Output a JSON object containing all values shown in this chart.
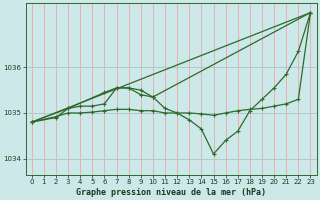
{
  "bg_color": "#cce8e8",
  "plot_bg_color": "#cce8e8",
  "grid_color_h": "#aacccc",
  "grid_color_v": "#e8b0b0",
  "line_color": "#2d6a2d",
  "marker_color": "#2d6a2d",
  "xlabel": "Graphe pression niveau de la mer (hPa)",
  "ylim": [
    1033.65,
    1037.4
  ],
  "xlim": [
    -0.5,
    23.5
  ],
  "yticks": [
    1034,
    1035,
    1036
  ],
  "xticks": [
    0,
    1,
    2,
    3,
    4,
    5,
    6,
    7,
    8,
    9,
    10,
    11,
    12,
    13,
    14,
    15,
    16,
    17,
    18,
    19,
    20,
    21,
    22,
    23
  ],
  "series": [
    {
      "x": [
        0,
        23
      ],
      "y": [
        1034.8,
        1037.2
      ]
    },
    {
      "x": [
        0,
        2,
        3,
        4,
        5,
        6,
        7,
        8,
        9,
        10,
        23
      ],
      "y": [
        1034.8,
        1034.9,
        1035.1,
        1035.15,
        1035.15,
        1035.2,
        1035.55,
        1035.55,
        1035.5,
        1035.35,
        1037.2
      ]
    },
    {
      "x": [
        0,
        3,
        6,
        7,
        8,
        9,
        10,
        11,
        12,
        13,
        14,
        15,
        16,
        17,
        18,
        19,
        20,
        21,
        22,
        23
      ],
      "y": [
        1034.8,
        1035.1,
        1035.45,
        1035.55,
        1035.55,
        1035.4,
        1035.35,
        1035.1,
        1035.0,
        1034.85,
        1034.65,
        1034.1,
        1034.4,
        1034.6,
        1035.05,
        1035.3,
        1035.55,
        1035.85,
        1036.35,
        1037.2
      ]
    },
    {
      "x": [
        0,
        2,
        3,
        4,
        5,
        6,
        7,
        8,
        9,
        10,
        11,
        12,
        13,
        14,
        15,
        16,
        17,
        18,
        19,
        20,
        21,
        22,
        23
      ],
      "y": [
        1034.8,
        1034.92,
        1035.0,
        1035.0,
        1035.02,
        1035.05,
        1035.08,
        1035.08,
        1035.05,
        1035.05,
        1035.0,
        1035.0,
        1035.0,
        1034.98,
        1034.95,
        1035.0,
        1035.05,
        1035.08,
        1035.1,
        1035.15,
        1035.2,
        1035.3,
        1037.2
      ]
    }
  ]
}
